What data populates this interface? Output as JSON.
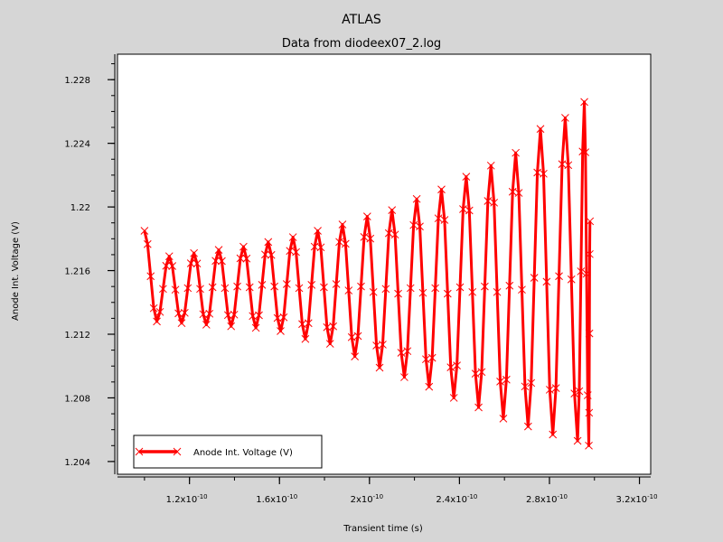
{
  "chart_data": {
    "type": "line",
    "title": "ATLAS",
    "subtitle": "Data from diodeex07_2.log",
    "xlabel": "Transient time (s)",
    "ylabel": "Anode Int. Voltage (V)",
    "xlim": [
      8.8e-11,
      3.25e-10
    ],
    "ylim": [
      1.2032,
      1.2296
    ],
    "x_ticks": [
      {
        "value": 1.2e-10,
        "mantissa": "1.2x10",
        "exp": "-10"
      },
      {
        "value": 1.6e-10,
        "mantissa": "1.6x10",
        "exp": "-10"
      },
      {
        "value": 2e-10,
        "mantissa": "2x10",
        "exp": "-10"
      },
      {
        "value": 2.4e-10,
        "mantissa": "2.4x10",
        "exp": "-10"
      },
      {
        "value": 2.8e-10,
        "mantissa": "2.8x10",
        "exp": "-10"
      },
      {
        "value": 3.2e-10,
        "mantissa": "3.2x10",
        "exp": "-10"
      }
    ],
    "y_ticks": [
      {
        "value": 1.204,
        "label": "1.204"
      },
      {
        "value": 1.208,
        "label": "1.208"
      },
      {
        "value": 1.212,
        "label": "1.212"
      },
      {
        "value": 1.216,
        "label": "1.216"
      },
      {
        "value": 1.22,
        "label": "1.22"
      },
      {
        "value": 1.224,
        "label": "1.224"
      },
      {
        "value": 1.228,
        "label": "1.228"
      }
    ],
    "grid": false,
    "legend_position": "bottom-left",
    "series": [
      {
        "name": "Anode Int. Voltage (V)",
        "color": "#ff0000",
        "marker": "x",
        "x_start": 1e-10,
        "x_end": 2.98e-10,
        "start_value": 1.2185,
        "end_value": 1.2191,
        "extrema": [
          {
            "x": 1.055e-10,
            "y": 1.2128
          },
          {
            "x": 1.11e-10,
            "y": 1.2169
          },
          {
            "x": 1.165e-10,
            "y": 1.2127
          },
          {
            "x": 1.22e-10,
            "y": 1.2171
          },
          {
            "x": 1.275e-10,
            "y": 1.2126
          },
          {
            "x": 1.33e-10,
            "y": 1.2173
          },
          {
            "x": 1.385e-10,
            "y": 1.2125
          },
          {
            "x": 1.44e-10,
            "y": 1.2175
          },
          {
            "x": 1.495e-10,
            "y": 1.2124
          },
          {
            "x": 1.55e-10,
            "y": 1.2178
          },
          {
            "x": 1.605e-10,
            "y": 1.2122
          },
          {
            "x": 1.66e-10,
            "y": 1.2181
          },
          {
            "x": 1.715e-10,
            "y": 1.2117
          },
          {
            "x": 1.77e-10,
            "y": 1.2185
          },
          {
            "x": 1.825e-10,
            "y": 1.2114
          },
          {
            "x": 1.88e-10,
            "y": 1.2189
          },
          {
            "x": 1.935e-10,
            "y": 1.2106
          },
          {
            "x": 1.99e-10,
            "y": 1.2194
          },
          {
            "x": 2.045e-10,
            "y": 1.2099
          },
          {
            "x": 2.1e-10,
            "y": 1.2198
          },
          {
            "x": 2.155e-10,
            "y": 1.2093
          },
          {
            "x": 2.21e-10,
            "y": 1.2205
          },
          {
            "x": 2.265e-10,
            "y": 1.2087
          },
          {
            "x": 2.32e-10,
            "y": 1.2211
          },
          {
            "x": 2.375e-10,
            "y": 1.208
          },
          {
            "x": 2.43e-10,
            "y": 1.2219
          },
          {
            "x": 2.485e-10,
            "y": 1.2074
          },
          {
            "x": 2.54e-10,
            "y": 1.2226
          },
          {
            "x": 2.595e-10,
            "y": 1.2067
          },
          {
            "x": 2.65e-10,
            "y": 1.2234
          },
          {
            "x": 2.705e-10,
            "y": 1.2062
          },
          {
            "x": 2.76e-10,
            "y": 1.2249
          },
          {
            "x": 2.815e-10,
            "y": 1.2057
          },
          {
            "x": 2.87e-10,
            "y": 1.2256
          },
          {
            "x": 2.925e-10,
            "y": 1.2053
          },
          {
            "x": 2.955e-10,
            "y": 1.2266
          },
          {
            "x": 2.975e-10,
            "y": 1.205
          }
        ]
      }
    ]
  }
}
